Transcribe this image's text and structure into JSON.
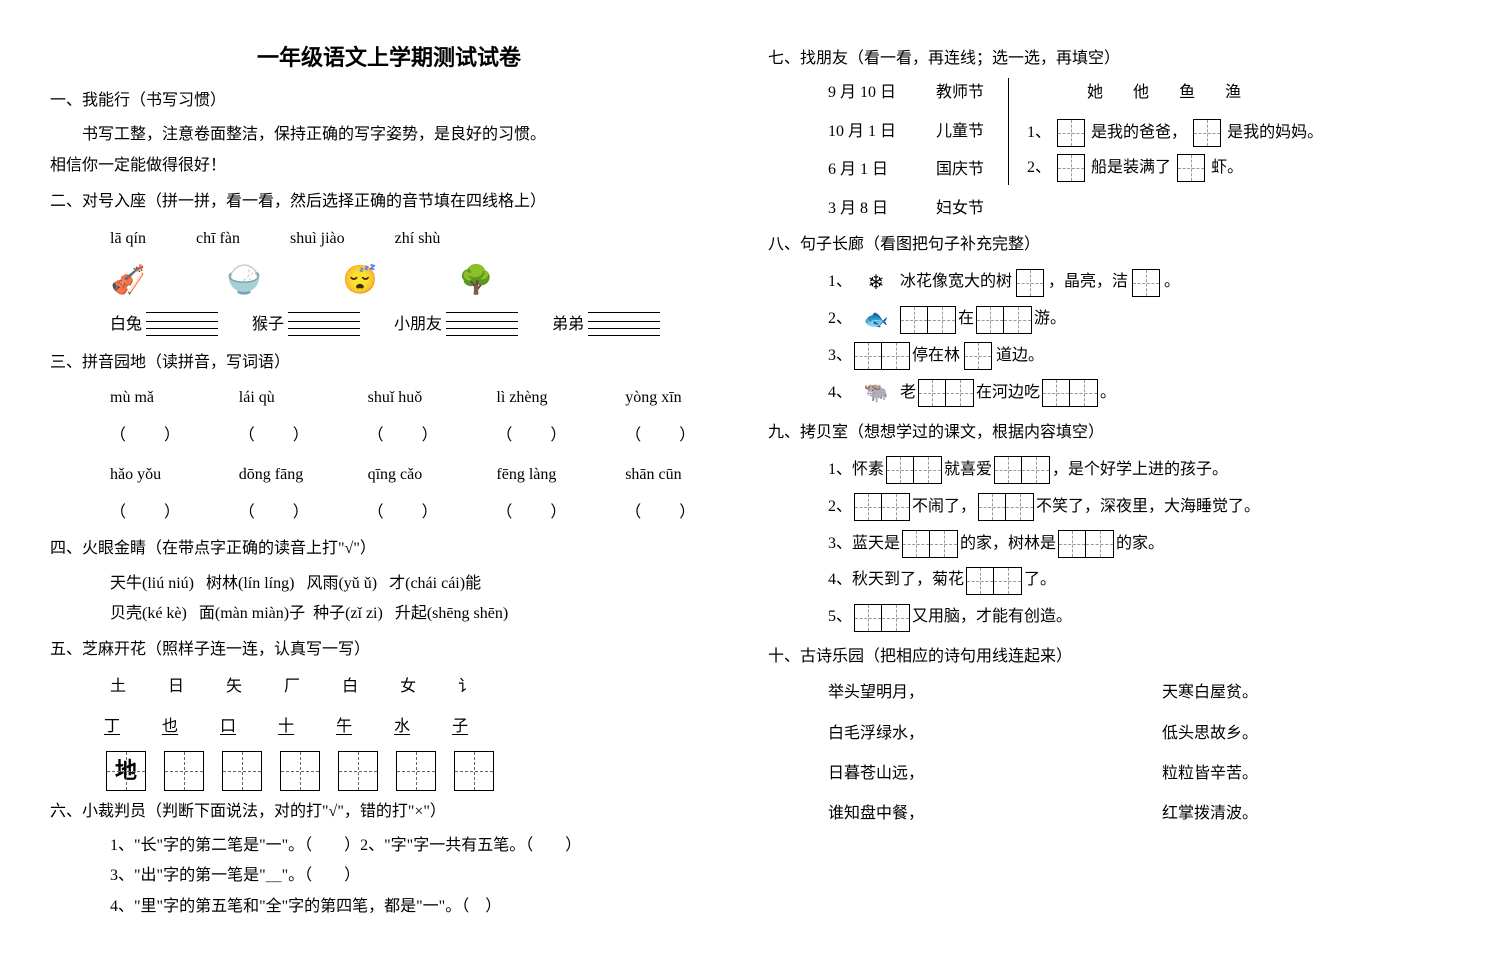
{
  "title": "一年级语文上学期测试试卷",
  "font_sizes": {
    "title": 22,
    "body": 16
  },
  "colors": {
    "text": "#000000",
    "bg": "#ffffff",
    "dash": "#666666"
  },
  "q1": {
    "head": "一、我能行（书写习惯）",
    "line1": "书写工整，注意卷面整洁，保持正确的写字姿势，是良好的习惯。",
    "line2": "相信你一定能做得很好！"
  },
  "q2": {
    "head": "二、对号入座（拼一拼，看一看，然后选择正确的音节填在四线格上）",
    "pinyin": [
      "lā qín",
      "chī fàn",
      "shuì jiào",
      "zhí shù"
    ],
    "labels": [
      "白兔",
      "猴子",
      "小朋友",
      "弟弟"
    ]
  },
  "q3": {
    "head": "三、拼音园地（读拼音，写词语）",
    "row1": [
      "mù mǎ",
      "lái qù",
      "shuǐ huǒ",
      "lì zhèng",
      "yòng xīn"
    ],
    "row2": [
      "hǎo yǒu",
      "dōng fāng",
      "qīng cǎo",
      "fēng làng",
      "shān cūn"
    ],
    "paren": "（　　）"
  },
  "q4": {
    "head": "四、火眼金睛（在带点字正确的读音上打\"√\"）",
    "line1_a": "天牛(liú niú)",
    "line1_b": "树林(lín líng)",
    "line1_c": "风雨(yǔ ǔ)",
    "line1_d": "才(chái cái)能",
    "line2_a": "贝壳(ké kè)",
    "line2_b": "面(màn miàn)子",
    "line2_c": "种子(zǐ zi)",
    "line2_d": "升起(shēng shēn)"
  },
  "q5": {
    "head": "五、芝麻开花（照样子连一连，认真写一写）",
    "row_top": [
      "土",
      "日",
      "矢",
      "厂",
      "白",
      "女",
      "讠"
    ],
    "row_bot": [
      "丁",
      "也",
      "口",
      "十",
      "午",
      "水",
      "子"
    ],
    "example": "地"
  },
  "q6": {
    "head": "六、小裁判员（判断下面说法，对的打\"√\"，错的打\"×\"）",
    "item1": "1、\"长\"字的第二笔是\"一\"。（　　）2、\"字\"字一共有五笔。（　　）",
    "item3": "3、\"出\"字的第一笔是\"＿\"。（　　）",
    "item4": "4、\"里\"字的第五笔和\"全\"字的第四笔，都是\"一\"。（　）"
  },
  "q7": {
    "head": "七、找朋友（看一看，再连线；选一选，再填空）",
    "dates": [
      "9 月 10 日",
      "10 月 1 日",
      "6 月 1 日",
      "3 月 8 日"
    ],
    "festivals": [
      "教师节",
      "儿童节",
      "国庆节",
      "妇女节"
    ],
    "chars": [
      "她",
      "他",
      "鱼",
      "渔"
    ],
    "fill1_a": "1、",
    "fill1_b": "是我的爸爸，",
    "fill1_c": "是我的妈妈。",
    "fill2_a": "2、",
    "fill2_b": "船是装满了",
    "fill2_c": "虾。"
  },
  "q8": {
    "head": "八、句子长廊（看图把句子补充完整）",
    "s1_a": "1、",
    "s1_b": "冰花像宽大的树",
    "s1_c": "，晶亮，洁",
    "s1_d": "。",
    "s2_a": "2、",
    "s2_b": "在",
    "s2_c": "游。",
    "s3_a": "3、",
    "s3_b": "停在林",
    "s3_c": "道边。",
    "s4_a": "4、",
    "s4_b": "老",
    "s4_c": "在河边吃",
    "s4_d": "。"
  },
  "q9": {
    "head": "九、拷贝室（想想学过的课文，根据内容填空）",
    "s1_a": "1、怀素",
    "s1_b": "就喜爱",
    "s1_c": "，是个好学上进的孩子。",
    "s2_a": "2、",
    "s2_b": "不闹了，",
    "s2_c": "不笑了，深夜里，大海睡觉了。",
    "s3_a": "3、蓝天是",
    "s3_b": "的家，树林是",
    "s3_c": "的家。",
    "s4_a": "4、秋天到了，菊花",
    "s4_b": "了。",
    "s5_a": "5、",
    "s5_b": "又用脑，才能有创造。"
  },
  "q10": {
    "head": "十、古诗乐园（把相应的诗句用线连起来）",
    "left": [
      "举头望明月，",
      "白毛浮绿水，",
      "日暮苍山远，",
      "谁知盘中餐，"
    ],
    "right": [
      "天寒白屋贫。",
      "低头思故乡。",
      "粒粒皆辛苦。",
      "红掌拨清波。"
    ]
  }
}
